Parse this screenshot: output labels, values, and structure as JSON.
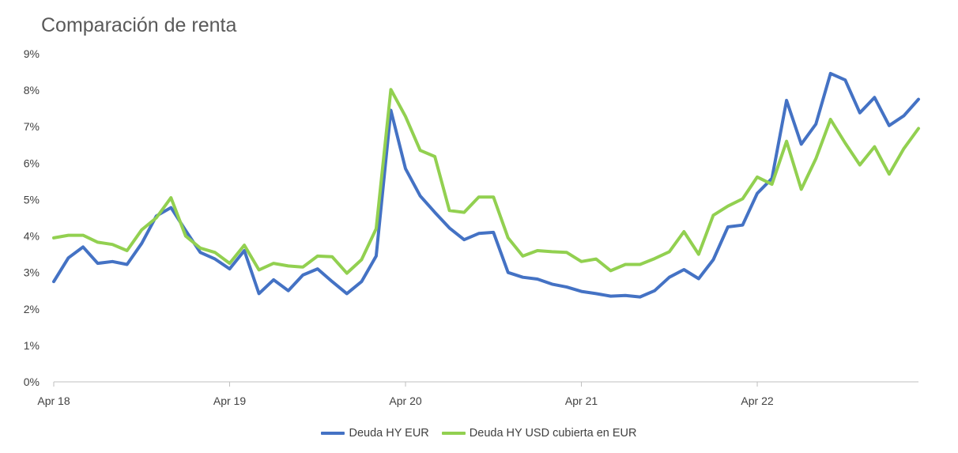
{
  "chart_data": {
    "type": "line",
    "title": "Comparación de renta",
    "xlabel": "",
    "ylabel": "",
    "x_tick_labels": [
      "Apr 18",
      "Apr 19",
      "Apr 20",
      "Apr 21",
      "Apr 22"
    ],
    "x_tick_index": [
      0,
      12,
      24,
      36,
      48
    ],
    "y_tick_labels": [
      "0%",
      "1%",
      "2%",
      "3%",
      "4%",
      "5%",
      "6%",
      "7%",
      "8%",
      "9%"
    ],
    "y_ticks": [
      0,
      1,
      2,
      3,
      4,
      5,
      6,
      7,
      8,
      9
    ],
    "ylim": [
      0,
      9
    ],
    "y_unit": "%",
    "x_start": "2018-04",
    "x_end": "2023-03",
    "frequency": "monthly",
    "grid": false,
    "legend_position": "bottom",
    "series": [
      {
        "name": "Deuda HY EUR",
        "color": "#4472C4",
        "values": [
          2.75,
          3.4,
          3.7,
          3.25,
          3.3,
          3.22,
          3.8,
          4.55,
          4.78,
          4.15,
          3.55,
          3.37,
          3.1,
          3.6,
          2.42,
          2.8,
          2.5,
          2.93,
          3.1,
          2.75,
          2.42,
          2.75,
          3.45,
          7.45,
          5.85,
          5.1,
          4.65,
          4.22,
          3.9,
          4.07,
          4.1,
          3.0,
          2.87,
          2.82,
          2.68,
          2.6,
          2.48,
          2.42,
          2.35,
          2.37,
          2.33,
          2.5,
          2.87,
          3.08,
          2.83,
          3.35,
          4.25,
          4.3,
          5.17,
          5.58,
          7.72,
          6.52,
          7.07,
          8.46,
          8.28,
          7.38,
          7.8,
          7.03,
          7.3,
          7.75
        ]
      },
      {
        "name": "Deuda HY USD cubierta en EUR",
        "color": "#92D050",
        "values": [
          3.95,
          4.02,
          4.02,
          3.83,
          3.77,
          3.6,
          4.17,
          4.5,
          5.05,
          4.0,
          3.67,
          3.55,
          3.25,
          3.75,
          3.07,
          3.25,
          3.18,
          3.15,
          3.45,
          3.43,
          2.98,
          3.35,
          4.2,
          8.02,
          7.28,
          6.35,
          6.18,
          4.7,
          4.65,
          5.07,
          5.07,
          3.95,
          3.45,
          3.6,
          3.57,
          3.55,
          3.3,
          3.37,
          3.05,
          3.22,
          3.22,
          3.38,
          3.57,
          4.12,
          3.5,
          4.57,
          4.82,
          5.02,
          5.62,
          5.42,
          6.6,
          5.28,
          6.12,
          7.2,
          6.55,
          5.95,
          6.45,
          5.7,
          6.4,
          6.95
        ]
      }
    ]
  }
}
